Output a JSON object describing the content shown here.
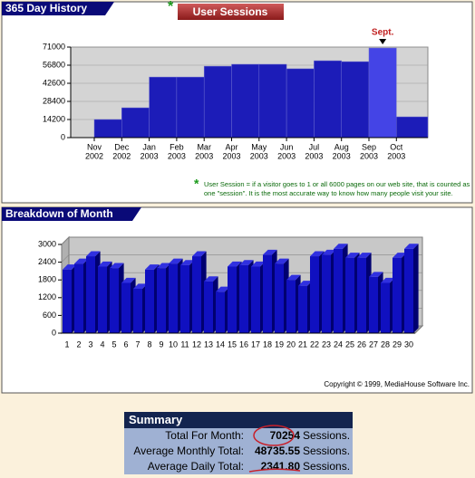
{
  "chart_data": [
    {
      "type": "bar",
      "panel_title": "365 Day History",
      "title": "User Sessions",
      "categories": [
        [
          "Nov",
          "2002"
        ],
        [
          "Dec",
          "2002"
        ],
        [
          "Jan",
          "2003"
        ],
        [
          "Feb",
          "2003"
        ],
        [
          "Mar",
          "2003"
        ],
        [
          "Apr",
          "2003"
        ],
        [
          "May",
          "2003"
        ],
        [
          "Jun",
          "2003"
        ],
        [
          "Jul",
          "2003"
        ],
        [
          "Aug",
          "2003"
        ],
        [
          "Sep",
          "2003"
        ],
        [
          "Oct",
          "2003"
        ]
      ],
      "values": [
        14200,
        23400,
        47500,
        47500,
        56000,
        57500,
        57500,
        54000,
        60300,
        59600,
        70254,
        16300
      ],
      "color": "#1c1cb8",
      "highlight": {
        "index": 10,
        "color": "#4444e6",
        "label": "Sept."
      },
      "ylim": [
        0,
        71000
      ],
      "yticks": [
        0,
        14200,
        28400,
        42600,
        56800,
        71000
      ],
      "grid": true,
      "note_mark": "*",
      "note": "User Session = if a visitor goes to 1 or all 6000 pages on our web site, that is counted as one \"session\". It is the most accurate way to know how many people visit your site."
    },
    {
      "type": "bar3d",
      "panel_title": "Breakdown of Month",
      "categories": [
        "1",
        "2",
        "3",
        "4",
        "5",
        "6",
        "7",
        "8",
        "9",
        "10",
        "11",
        "12",
        "13",
        "14",
        "15",
        "16",
        "17",
        "18",
        "19",
        "20",
        "21",
        "22",
        "23",
        "24",
        "25",
        "26",
        "27",
        "28",
        "29",
        "30"
      ],
      "values": [
        2150,
        2350,
        2600,
        2250,
        2200,
        1700,
        1500,
        2150,
        2200,
        2350,
        2300,
        2600,
        1750,
        1400,
        2250,
        2300,
        2250,
        2650,
        2350,
        1800,
        1600,
        2600,
        2650,
        2850,
        2550,
        2550,
        1900,
        1700,
        2550,
        2850
      ],
      "color": "#1010c0",
      "ylim": [
        0,
        3000
      ],
      "yticks": [
        0,
        600,
        1200,
        1800,
        2400,
        3000
      ],
      "grid": true,
      "copyright": "Copyright © 1999, MediaHouse Software Inc."
    }
  ],
  "summary": {
    "title": "Summary",
    "rows": [
      {
        "label": "Total For Month:",
        "value": "70254",
        "unit": "Sessions."
      },
      {
        "label": "Average Monthly Total:",
        "value": "48735.55",
        "unit": "Sessions."
      },
      {
        "label": "Average Daily Total:",
        "value": "2341.80",
        "unit": "Sessions."
      }
    ]
  }
}
